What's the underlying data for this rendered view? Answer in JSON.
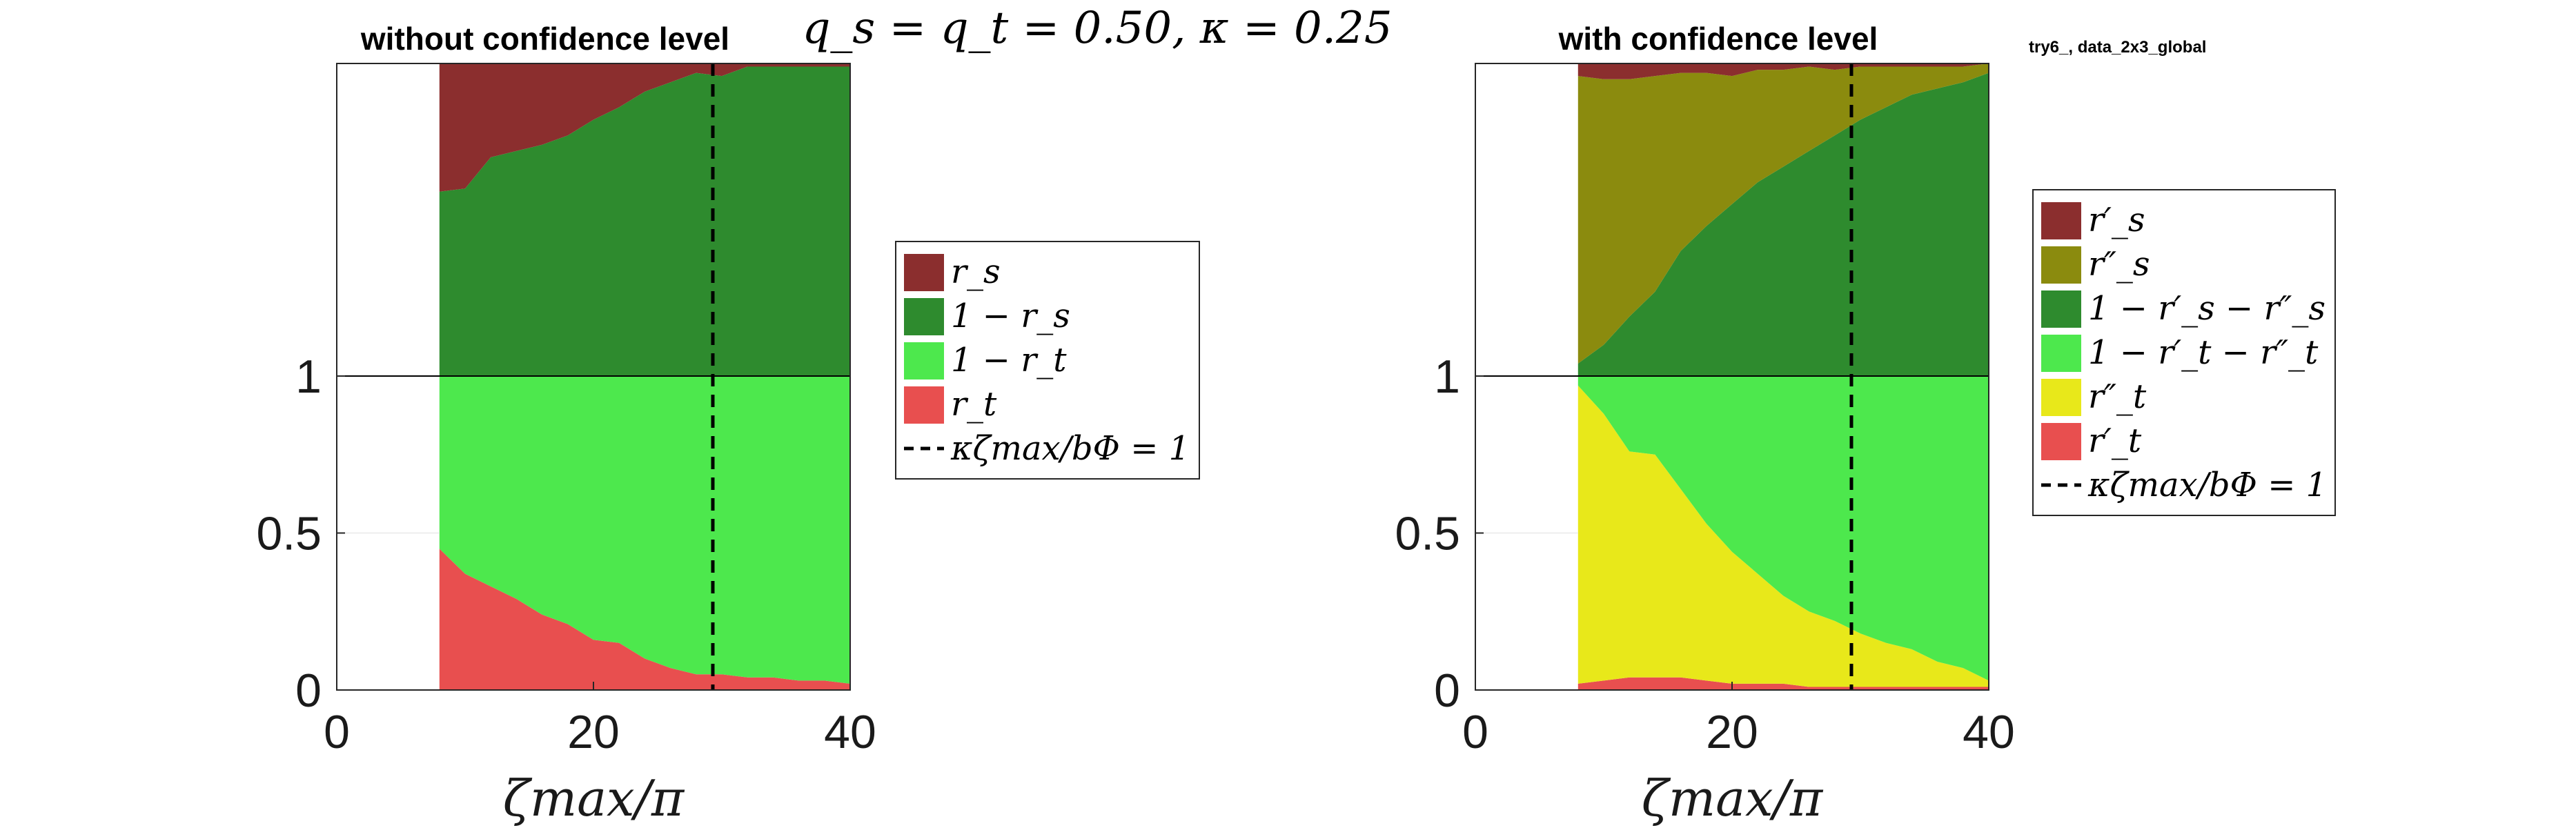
{
  "figure": {
    "suptitle": "q_s = q_t = 0.50,  κ = 0.25",
    "tag": "try6_, data_2x3_global"
  },
  "chart_data": [
    {
      "type": "area",
      "title": "without confidence level",
      "xlabel": "ζmax/π",
      "ylabel": "",
      "xlim": [
        0,
        40
      ],
      "xticks": [
        "0",
        "20",
        "40"
      ],
      "yticks": [
        "0",
        "0.5",
        "1"
      ],
      "lower_ylim": [
        0,
        1
      ],
      "upper_ylim": [
        0,
        1
      ],
      "vline": {
        "x": 29.3,
        "label": "κζmax/bΦ = 1",
        "style": "dashed"
      },
      "x": [
        8,
        10,
        12,
        14,
        16,
        18,
        20,
        22,
        24,
        26,
        28,
        30,
        32,
        34,
        36,
        38,
        40
      ],
      "lower_panel": {
        "series": [
          {
            "name": "r_t",
            "color": "#e84f4f",
            "values": [
              0.45,
              0.37,
              0.33,
              0.29,
              0.24,
              0.21,
              0.16,
              0.15,
              0.1,
              0.07,
              0.05,
              0.05,
              0.04,
              0.04,
              0.03,
              0.03,
              0.02
            ]
          },
          {
            "name": "1 − r_t",
            "color": "#4de84d",
            "values": [
              0.55,
              0.63,
              0.67,
              0.71,
              0.76,
              0.79,
              0.84,
              0.85,
              0.9,
              0.93,
              0.95,
              0.95,
              0.96,
              0.96,
              0.97,
              0.97,
              0.98
            ]
          }
        ]
      },
      "upper_panel": {
        "series": [
          {
            "name": "1 − r_s",
            "color": "#2e8b2e",
            "values": [
              0.59,
              0.6,
              0.7,
              0.72,
              0.74,
              0.77,
              0.82,
              0.86,
              0.91,
              0.94,
              0.97,
              0.96,
              0.99,
              0.99,
              0.99,
              0.99,
              0.99
            ]
          },
          {
            "name": "r_s",
            "color": "#8b2e2e",
            "values": [
              0.41,
              0.4,
              0.3,
              0.28,
              0.26,
              0.23,
              0.18,
              0.14,
              0.09,
              0.06,
              0.03,
              0.04,
              0.01,
              0.01,
              0.01,
              0.01,
              0.01
            ]
          }
        ]
      },
      "legend": [
        {
          "label": "r_s",
          "color": "#8b2e2e"
        },
        {
          "label": "1 − r_s",
          "color": "#2e8b2e"
        },
        {
          "label": "1 − r_t",
          "color": "#4de84d"
        },
        {
          "label": "r_t",
          "color": "#e84f4f"
        },
        {
          "label": "κζmax/bΦ = 1",
          "line": "dashed"
        }
      ]
    },
    {
      "type": "area",
      "title": "with confidence level",
      "xlabel": "ζmax/π",
      "ylabel": "",
      "xlim": [
        0,
        40
      ],
      "xticks": [
        "0",
        "20",
        "40"
      ],
      "yticks": [
        "0",
        "0.5",
        "1"
      ],
      "lower_ylim": [
        0,
        1
      ],
      "upper_ylim": [
        0,
        1
      ],
      "vline": {
        "x": 29.3,
        "label": "κζmax/bΦ = 1",
        "style": "dashed"
      },
      "x": [
        8,
        10,
        12,
        14,
        16,
        18,
        20,
        22,
        24,
        26,
        28,
        30,
        32,
        34,
        36,
        38,
        40
      ],
      "lower_panel": {
        "series": [
          {
            "name": "r′_t",
            "color": "#e84f4f",
            "values": [
              0.02,
              0.03,
              0.04,
              0.04,
              0.04,
              0.03,
              0.02,
              0.02,
              0.02,
              0.01,
              0.01,
              0.01,
              0.01,
              0.01,
              0.01,
              0.01,
              0.01
            ]
          },
          {
            "name": "r″_t",
            "color": "#e8e81a",
            "values": [
              0.95,
              0.85,
              0.72,
              0.71,
              0.6,
              0.5,
              0.42,
              0.35,
              0.28,
              0.24,
              0.21,
              0.17,
              0.14,
              0.12,
              0.08,
              0.06,
              0.02
            ]
          },
          {
            "name": "1 − r′_t − r″_t",
            "color": "#4de84d",
            "values": [
              0.03,
              0.12,
              0.24,
              0.25,
              0.36,
              0.47,
              0.56,
              0.63,
              0.7,
              0.75,
              0.78,
              0.82,
              0.85,
              0.87,
              0.91,
              0.93,
              0.97
            ]
          }
        ]
      },
      "upper_panel": {
        "series": [
          {
            "name": "1 − r′_s − r″_s",
            "color": "#2e8b2e",
            "values": [
              0.04,
              0.1,
              0.19,
              0.27,
              0.4,
              0.48,
              0.55,
              0.62,
              0.67,
              0.72,
              0.77,
              0.82,
              0.86,
              0.9,
              0.92,
              0.94,
              0.97
            ]
          },
          {
            "name": "r″_s",
            "color": "#8b8b0e",
            "values": [
              0.92,
              0.85,
              0.76,
              0.69,
              0.57,
              0.49,
              0.41,
              0.36,
              0.31,
              0.27,
              0.21,
              0.17,
              0.13,
              0.09,
              0.07,
              0.05,
              0.03
            ]
          },
          {
            "name": "r′_s",
            "color": "#8b2e2e",
            "values": [
              0.04,
              0.05,
              0.05,
              0.04,
              0.03,
              0.03,
              0.04,
              0.02,
              0.02,
              0.01,
              0.02,
              0.01,
              0.01,
              0.01,
              0.01,
              0.01,
              0.0
            ]
          }
        ]
      },
      "legend": [
        {
          "label": "r′_s",
          "color": "#8b2e2e"
        },
        {
          "label": "r″_s",
          "color": "#8b8b0e"
        },
        {
          "label": "1 − r′_s − r″_s",
          "color": "#2e8b2e"
        },
        {
          "label": "1 − r′_t − r″_t",
          "color": "#4de84d"
        },
        {
          "label": "r″_t",
          "color": "#e8e81a"
        },
        {
          "label": "r′_t",
          "color": "#e84f4f"
        },
        {
          "label": "κζmax/bΦ = 1",
          "line": "dashed"
        }
      ]
    }
  ]
}
